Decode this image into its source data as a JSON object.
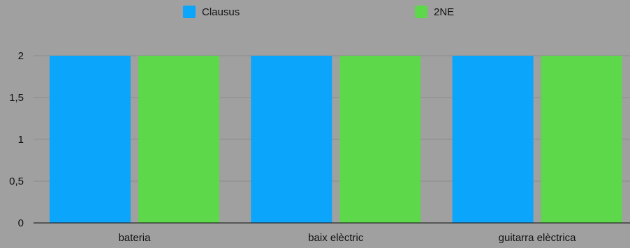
{
  "chart_data": {
    "type": "bar",
    "categories": [
      "bateria",
      "baix elèctric",
      "guitarra elèctrica"
    ],
    "series": [
      {
        "name": "Clausus",
        "values": [
          2,
          2,
          2
        ],
        "color": "#0ba5fb"
      },
      {
        "name": "2NE",
        "values": [
          2,
          2,
          2
        ],
        "color": "#5cd84a"
      }
    ],
    "ylim": [
      0,
      2
    ],
    "yticks": [
      0,
      0.5,
      1,
      1.5,
      2
    ],
    "ytick_labels": [
      "0",
      "0,5",
      "1",
      "1,5",
      "2"
    ],
    "grid": true,
    "legend": "top",
    "colors": {
      "background": "#a0a0a0",
      "grid": "#8c8c8c",
      "axis": "#2a2a2a",
      "text": "#111111"
    }
  }
}
